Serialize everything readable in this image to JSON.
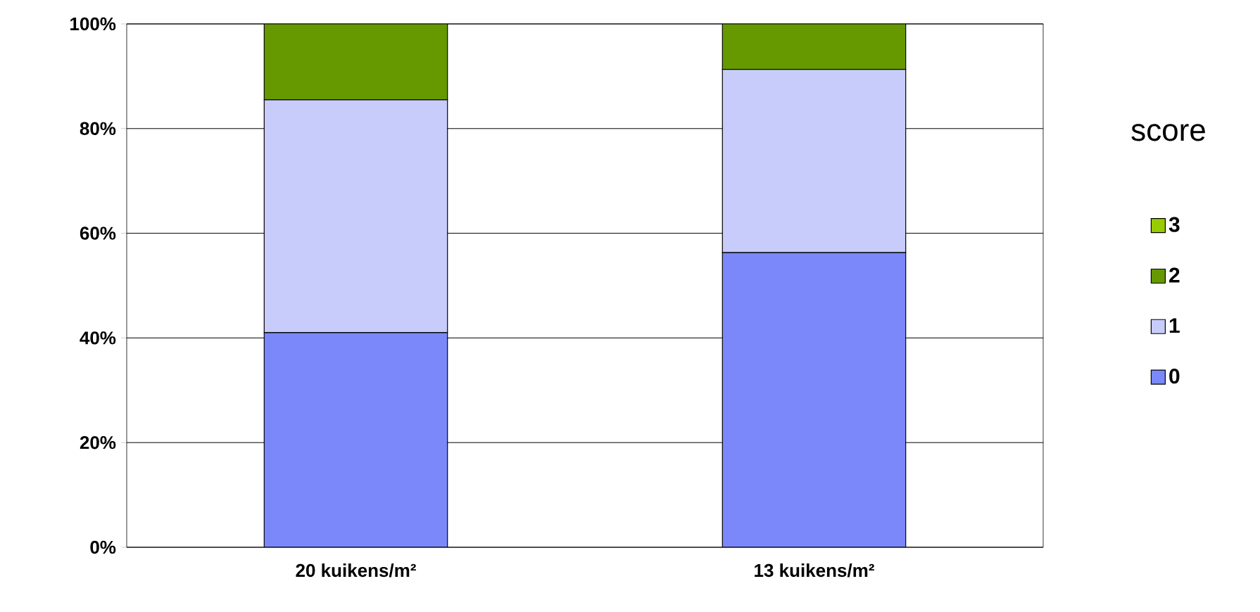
{
  "chart_data": {
    "type": "bar",
    "stacked": true,
    "categories": [
      "20 kuikens/m²",
      "13 kuikens/m²"
    ],
    "series": [
      {
        "name": "0",
        "color": "#7b88f9",
        "values": [
          41,
          56.3
        ]
      },
      {
        "name": "1",
        "color": "#c8ccfa",
        "values": [
          44.5,
          35
        ]
      },
      {
        "name": "2",
        "color": "#669900",
        "values": [
          14.5,
          8.7
        ]
      },
      {
        "name": "3",
        "color": "#99cc00",
        "values": [
          0,
          0
        ]
      }
    ],
    "legend_title": "score",
    "legend": "right",
    "grid": "y",
    "ylim": [
      0,
      100
    ],
    "yticks": [
      {
        "value": 0,
        "label": "0%"
      },
      {
        "value": 20,
        "label": "20%"
      },
      {
        "value": 40,
        "label": "40%"
      },
      {
        "value": 60,
        "label": "60%"
      },
      {
        "value": 80,
        "label": "80%"
      },
      {
        "value": 100,
        "label": "100%"
      }
    ]
  }
}
